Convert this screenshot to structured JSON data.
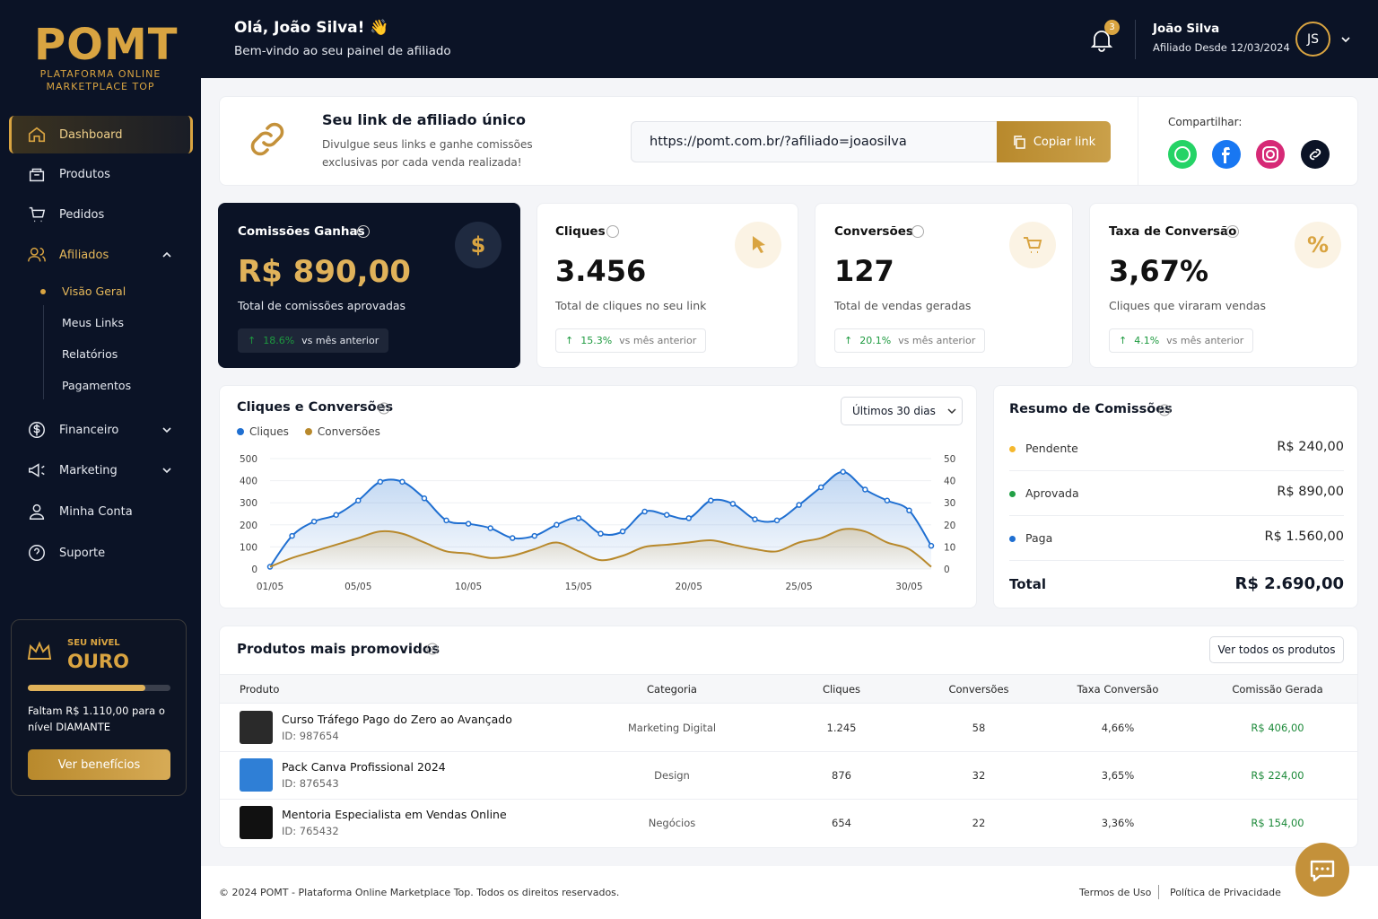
{
  "sidebar": {
    "logo": "POMT",
    "tagline": [
      "PLATAFORMA ONLINE",
      "MARKETPLACE TOP"
    ],
    "nav": [
      "Dashboard",
      "Produtos",
      "Pedidos",
      "Afiliados"
    ],
    "submenu": [
      "Visão Geral",
      "Meus Links",
      "Relatórios",
      "Pagamentos"
    ],
    "nav_bottom": [
      "Financeiro",
      "Marketing",
      "Minha Conta",
      "Suporte"
    ],
    "level": {
      "label": "SEU NÍVEL",
      "name": "OURO",
      "progress_text": "Faltam R$ 1.110,00 para o nível DIAMANTE",
      "button": "Ver benefícios"
    }
  },
  "header": {
    "greeting": "Olá, João Silva! 👋",
    "subtitle": "Bem-vindo ao seu painel de afiliado",
    "notifications": "3",
    "user_name": "João Silva",
    "user_since": "Afiliado Desde 12/03/2024",
    "initials": "JS"
  },
  "link_card": {
    "title": "Seu link de afiliado único",
    "description": "Divulgue seus links e ganhe comissões exclusivas por cada venda realizada!",
    "url": "https://pomt.com.br/?afiliado=joaosilva",
    "button": "Copiar link",
    "share_label": "Compartilhar:"
  },
  "stats": [
    {
      "title": "Comissões Ganhas",
      "value": "R$ 890,00",
      "description": "Total de comissões aprovadas",
      "change": "18.6%",
      "compare": "vs mês anterior"
    },
    {
      "title": "Cliques",
      "value": "3.456",
      "description": "Total de cliques no seu link",
      "change": "15.3%",
      "compare": "vs mês anterior"
    },
    {
      "title": "Conversões",
      "value": "127",
      "description": "Total de vendas geradas",
      "change": "20.1%",
      "compare": "vs mês anterior"
    },
    {
      "title": "Taxa de Conversão",
      "value": "3,67%",
      "description": "Cliques que viraram vendas",
      "change": "4.1%",
      "compare": "vs mês anterior"
    }
  ],
  "chart_card": {
    "title": "Cliques e Conversões",
    "range_button": "Últimos 30 dias"
  },
  "chart_data": {
    "type": "line",
    "categories": [
      "01/05",
      null,
      null,
      null,
      "05/05",
      null,
      null,
      null,
      null,
      "10/05",
      null,
      null,
      null,
      null,
      "15/05",
      null,
      null,
      null,
      null,
      "20/05",
      null,
      null,
      null,
      null,
      "25/05",
      null,
      null,
      null,
      null,
      "30/05",
      null
    ],
    "series": [
      {
        "name": "Cliques",
        "color": "#1f6fd1",
        "values": [
          10,
          150,
          215,
          245,
          310,
          395,
          395,
          320,
          220,
          205,
          185,
          140,
          150,
          200,
          230,
          160,
          170,
          260,
          245,
          230,
          310,
          295,
          225,
          220,
          290,
          370,
          440,
          360,
          310,
          265,
          105
        ]
      },
      {
        "name": "Conversões",
        "color": "#b8892c",
        "axis": "y2",
        "values": [
          1,
          5,
          8,
          11,
          14,
          17,
          16,
          12,
          8,
          7,
          5,
          6,
          9,
          12,
          8,
          4,
          6,
          10,
          11,
          12,
          13,
          11,
          9,
          8,
          12,
          14,
          18,
          17,
          12,
          9,
          1
        ]
      }
    ],
    "ylim": [
      0,
      500
    ],
    "yticks": [
      0,
      100,
      200,
      300,
      400,
      500
    ],
    "y2lim": [
      0,
      50
    ],
    "y2ticks": [
      0,
      10,
      20,
      30,
      40,
      50
    ],
    "grid": true
  },
  "summary": {
    "title": "Resumo de Comissões",
    "rows": [
      {
        "label": "Pendente",
        "value": "R$ 240,00",
        "color": "#f5b82e"
      },
      {
        "label": "Aprovada",
        "value": "R$ 890,00",
        "color": "#22a046"
      },
      {
        "label": "Paga",
        "value": "R$ 1.560,00",
        "color": "#1f6fd1"
      }
    ],
    "total_label": "Total",
    "total_value": "R$ 2.690,00"
  },
  "products": {
    "title": "Produtos mais promovidos",
    "button": "Ver todos os produtos",
    "columns": [
      "Produto",
      "Categoria",
      "Cliques",
      "Conversões",
      "Taxa Conversão",
      "Comissão Gerada"
    ],
    "rows": [
      {
        "name": "Curso Tráfego Pago do Zero ao Avançado",
        "id": "ID: 987654",
        "category": "Marketing Digital",
        "clicks": "1.245",
        "conversions": "58",
        "rate": "4,66%",
        "commission": "R$ 406,00"
      },
      {
        "name": "Pack Canva Profissional 2024",
        "id": "ID: 876543",
        "category": "Design",
        "clicks": "876",
        "conversions": "32",
        "rate": "3,65%",
        "commission": "R$ 224,00"
      },
      {
        "name": "Mentoria Especialista em Vendas Online",
        "id": "ID: 765432",
        "category": "Negócios",
        "clicks": "654",
        "conversions": "22",
        "rate": "3,36%",
        "commission": "R$ 154,00"
      }
    ]
  },
  "footer": {
    "copyright": "© 2024 POMT - Plataforma Online Marketplace Top. Todos os direitos reservados.",
    "links": [
      "Termos de Uso",
      "Política de Privacidade"
    ]
  }
}
